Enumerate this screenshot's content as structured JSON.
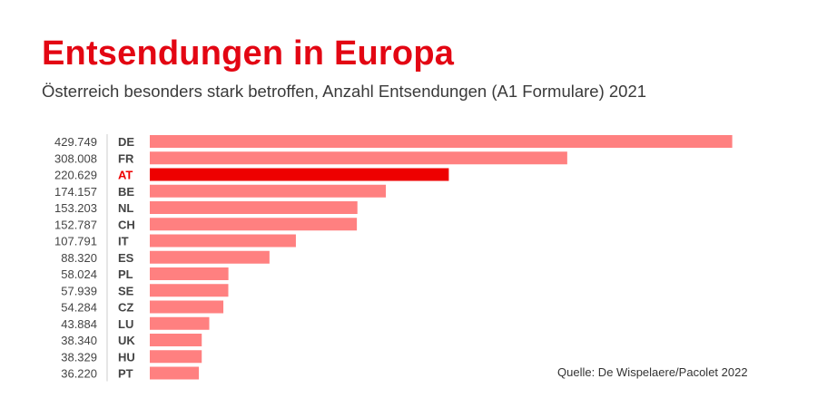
{
  "title": "Entsendungen in Europa",
  "subtitle": "Österreich besonders stark betroffen, Anzahl Entsendungen (A1 Formulare) 2021",
  "source": "Quelle: De Wispelaere/Pacolet 2022",
  "colors": {
    "title": "#e30613",
    "bar": "#ff8080",
    "highlight": "#ee0000",
    "label": "#444444"
  },
  "chart_data": {
    "type": "bar",
    "orientation": "horizontal",
    "title": "Entsendungen in Europa",
    "subtitle": "Österreich besonders stark betroffen, Anzahl Entsendungen (A1 Formulare) 2021",
    "categories": [
      "DE",
      "FR",
      "AT",
      "BE",
      "NL",
      "CH",
      "IT",
      "ES",
      "PL",
      "SE",
      "CZ",
      "LU",
      "UK",
      "HU",
      "PT"
    ],
    "values": [
      429749,
      308008,
      220629,
      174157,
      153203,
      152787,
      107791,
      88320,
      58024,
      57939,
      54284,
      43884,
      38340,
      38329,
      36220
    ],
    "value_labels": [
      "429.749",
      "308.008",
      "220.629",
      "174.157",
      "153.203",
      "152.787",
      "107.791",
      "88.320",
      "58.024",
      "57.939",
      "54.284",
      "43.884",
      "38.340",
      "38.329",
      "36.220"
    ],
    "highlight": "AT",
    "xlim": [
      0,
      430000
    ],
    "grid": false,
    "legend": "none"
  }
}
